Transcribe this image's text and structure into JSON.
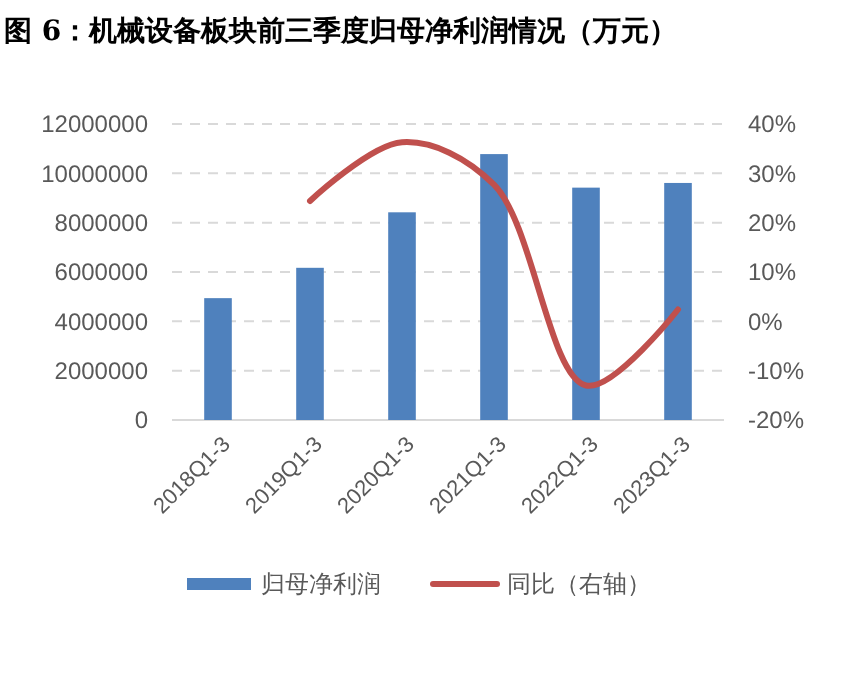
{
  "chart_data": {
    "type": "bar",
    "title": "图 6：机械设备板块前三季度归母净利润情况（万元）",
    "categories": [
      "2018Q1-3",
      "2019Q1-3",
      "2020Q1-3",
      "2021Q1-3",
      "2022Q1-3",
      "2023Q1-3"
    ],
    "series": [
      {
        "name": "归母净利润",
        "color": "#4f81bd",
        "values": [
          4940000,
          6170000,
          8420000,
          10780000,
          9420000,
          9610000
        ]
      },
      {
        "name": "同比（右轴）",
        "type": "line",
        "axis": "y2",
        "color": "#c0504d",
        "values": [
          null,
          24.4,
          36.3,
          27.7,
          -13,
          2.4
        ]
      }
    ],
    "ylim": [
      0,
      12000000
    ],
    "yticks": [
      0,
      2000000,
      4000000,
      6000000,
      8000000,
      10000000,
      12000000
    ],
    "y2lim": [
      -20,
      40
    ],
    "y2ticks": [
      {
        "value": -20,
        "label": "-20%"
      },
      {
        "value": -10,
        "label": "-10%"
      },
      {
        "value": 0,
        "label": "0%"
      },
      {
        "value": 10,
        "label": "10%"
      },
      {
        "value": 20,
        "label": "20%"
      },
      {
        "value": 30,
        "label": "30%"
      },
      {
        "value": 40,
        "label": "40%"
      }
    ],
    "grid": "y",
    "legend": "bottom",
    "line_style": "solid",
    "marker": "none"
  }
}
